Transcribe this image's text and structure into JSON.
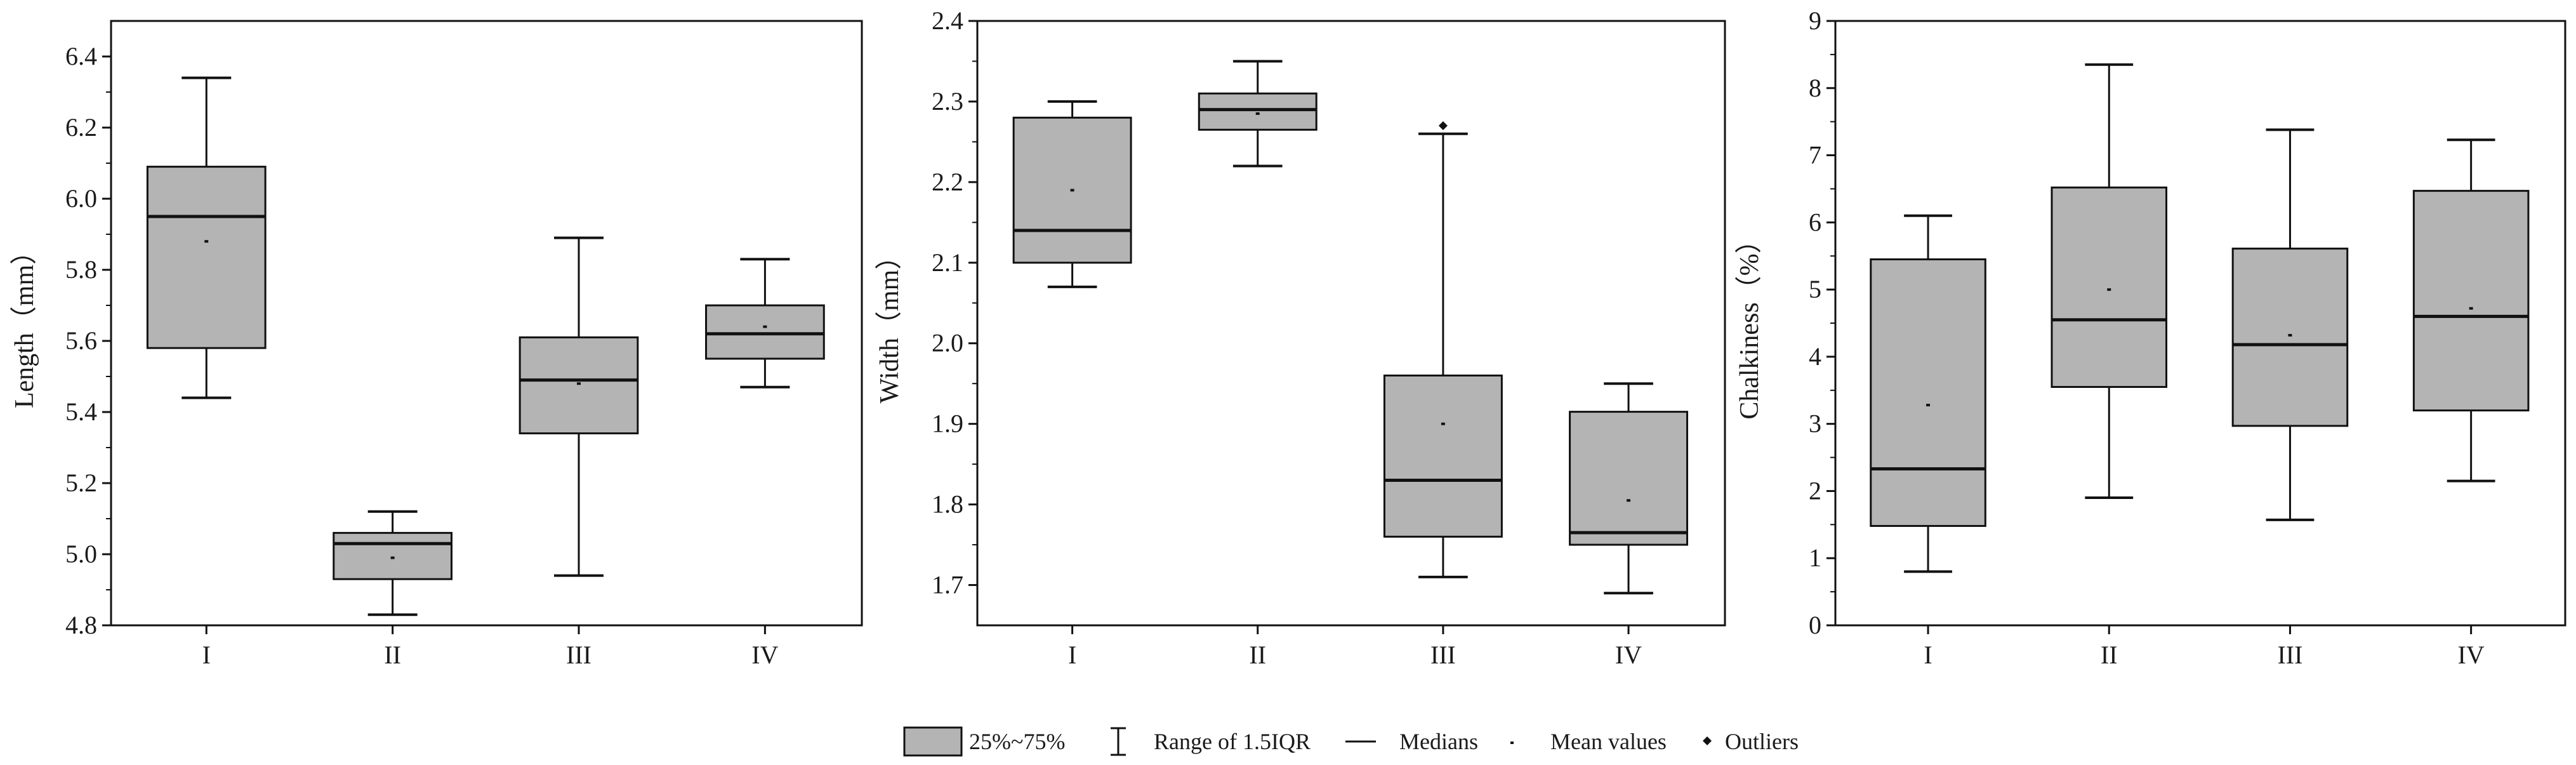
{
  "chart_data": [
    {
      "type": "box",
      "ylabel": "Length（mm）",
      "ylim": [
        4.8,
        6.5
      ],
      "yticks": [
        4.8,
        5.0,
        5.2,
        5.4,
        5.6,
        5.8,
        6.0,
        6.2,
        6.4
      ],
      "ytick_labels": [
        "4.8",
        "5.0",
        "5.2",
        "5.4",
        "5.6",
        "5.8",
        "6.0",
        "6.2",
        "6.4"
      ],
      "categories": [
        "I",
        "II",
        "III",
        "IV"
      ],
      "boxes": [
        {
          "category": "I",
          "whisker_low": 5.44,
          "q1": 5.58,
          "median": 5.95,
          "q3": 6.09,
          "whisker_high": 6.34,
          "mean": 5.88,
          "outliers": []
        },
        {
          "category": "II",
          "whisker_low": 4.83,
          "q1": 4.93,
          "median": 5.03,
          "q3": 5.06,
          "whisker_high": 5.12,
          "mean": 4.99,
          "outliers": []
        },
        {
          "category": "III",
          "whisker_low": 4.94,
          "q1": 5.34,
          "median": 5.49,
          "q3": 5.61,
          "whisker_high": 5.89,
          "mean": 5.48,
          "outliers": []
        },
        {
          "category": "IV",
          "whisker_low": 5.47,
          "q1": 5.55,
          "median": 5.62,
          "q3": 5.7,
          "whisker_high": 5.83,
          "mean": 5.64,
          "outliers": []
        }
      ]
    },
    {
      "type": "box",
      "ylabel": "Width（mm）",
      "ylim": [
        1.65,
        2.4
      ],
      "yticks": [
        1.7,
        1.8,
        1.9,
        2.0,
        2.1,
        2.2,
        2.3,
        2.4
      ],
      "ytick_labels": [
        "1.7",
        "1.8",
        "1.9",
        "2.0",
        "2.1",
        "2.2",
        "2.3",
        "2.4"
      ],
      "categories": [
        "I",
        "II",
        "III",
        "IV"
      ],
      "boxes": [
        {
          "category": "I",
          "whisker_low": 2.07,
          "q1": 2.1,
          "median": 2.14,
          "q3": 2.28,
          "whisker_high": 2.3,
          "mean": 2.19,
          "outliers": []
        },
        {
          "category": "II",
          "whisker_low": 2.22,
          "q1": 2.265,
          "median": 2.29,
          "q3": 2.31,
          "whisker_high": 2.35,
          "mean": 2.285,
          "outliers": []
        },
        {
          "category": "III",
          "whisker_low": 1.71,
          "q1": 1.76,
          "median": 1.83,
          "q3": 1.96,
          "whisker_high": 2.26,
          "mean": 1.9,
          "outliers": [
            2.27
          ]
        },
        {
          "category": "IV",
          "whisker_low": 1.69,
          "q1": 1.75,
          "median": 1.765,
          "q3": 1.915,
          "whisker_high": 1.95,
          "mean": 1.805,
          "outliers": []
        }
      ]
    },
    {
      "type": "box",
      "ylabel": "Chalkiness（%）",
      "ylim": [
        0,
        9
      ],
      "yticks": [
        0,
        1,
        2,
        3,
        4,
        5,
        6,
        7,
        8,
        9
      ],
      "ytick_labels": [
        "0",
        "1",
        "2",
        "3",
        "4",
        "5",
        "6",
        "7",
        "8",
        "9"
      ],
      "categories": [
        "I",
        "II",
        "III",
        "IV"
      ],
      "boxes": [
        {
          "category": "I",
          "whisker_low": 0.8,
          "q1": 1.48,
          "median": 2.33,
          "q3": 5.45,
          "whisker_high": 6.1,
          "mean": 3.28,
          "outliers": []
        },
        {
          "category": "II",
          "whisker_low": 1.9,
          "q1": 3.55,
          "median": 4.55,
          "q3": 6.52,
          "whisker_high": 8.35,
          "mean": 5.0,
          "outliers": []
        },
        {
          "category": "III",
          "whisker_low": 1.57,
          "q1": 2.97,
          "median": 4.18,
          "q3": 5.61,
          "whisker_high": 7.38,
          "mean": 4.32,
          "outliers": []
        },
        {
          "category": "IV",
          "whisker_low": 2.15,
          "q1": 3.2,
          "median": 4.6,
          "q3": 6.47,
          "whisker_high": 7.23,
          "mean": 4.72,
          "outliers": []
        }
      ]
    }
  ],
  "legend": {
    "box_label": "25%~75%",
    "whisker_label": "Range of 1.5IQR",
    "median_label": "Medians",
    "mean_label": "Mean values",
    "outlier_label": "Outliers"
  },
  "colors": {
    "box_fill": "#b4b4b4",
    "line": "#111111",
    "background": "#ffffff"
  }
}
